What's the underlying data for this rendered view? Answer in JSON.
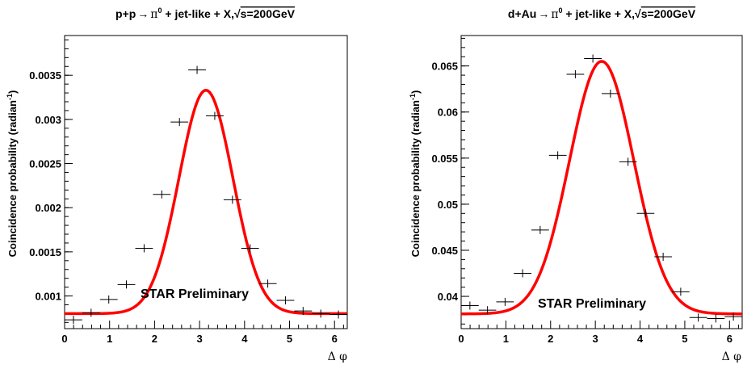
{
  "charts": [
    {
      "id": "pp",
      "title": {
        "pre": "p+p",
        "arrow": "→",
        "pi": "π",
        "sup": "0",
        "post": " + jet-like + X,",
        "sqrt": "√",
        "s": "s=200GeV"
      },
      "ylabel": {
        "main": "Coincidence probability (radian",
        "sup": "-1",
        "close": ")"
      },
      "xlabel": "Δ φ",
      "annotation": "STAR Preliminary"
    },
    {
      "id": "dau",
      "title": {
        "pre": "d+Au",
        "arrow": "→",
        "pi": "π",
        "sup": "0",
        "post": " + jet-like + X,",
        "sqrt": "√",
        "s": "s=200GeV"
      },
      "ylabel": {
        "main": "Coincidence probability (radian",
        "sup": "-1",
        "close": ")"
      },
      "xlabel": "Δ φ",
      "annotation": "STAR Preliminary"
    }
  ],
  "chart_data": [
    {
      "type": "scatter",
      "title": "p+p → π0 + jet-like + X, √s=200GeV",
      "xlabel": "Δ φ",
      "ylabel": "Coincidence probability (radian-1)",
      "xlim": [
        0,
        6.2832
      ],
      "ylim": [
        0.00063,
        0.00395
      ],
      "xticks": [
        0,
        1,
        2,
        3,
        4,
        5,
        6
      ],
      "yticks": [
        0.001,
        0.0015,
        0.002,
        0.0025,
        0.003,
        0.0035
      ],
      "ytick_labels": [
        "0.001",
        "0.0015",
        "0.002",
        "0.0025",
        "0.003",
        "0.0035"
      ],
      "xbin_width": 0.3927,
      "points": [
        {
          "x": 0.196,
          "y": 0.00073
        },
        {
          "x": 0.589,
          "y": 0.00081
        },
        {
          "x": 0.982,
          "y": 0.00096
        },
        {
          "x": 1.374,
          "y": 0.00113
        },
        {
          "x": 1.767,
          "y": 0.00154
        },
        {
          "x": 2.16,
          "y": 0.00215
        },
        {
          "x": 2.553,
          "y": 0.00297
        },
        {
          "x": 2.945,
          "y": 0.00356
        },
        {
          "x": 3.338,
          "y": 0.00304
        },
        {
          "x": 3.731,
          "y": 0.00209
        },
        {
          "x": 4.123,
          "y": 0.00154
        },
        {
          "x": 4.516,
          "y": 0.00114
        },
        {
          "x": 4.909,
          "y": 0.00095
        },
        {
          "x": 5.301,
          "y": 0.00083
        },
        {
          "x": 5.694,
          "y": 0.0008
        },
        {
          "x": 6.087,
          "y": 0.00079
        }
      ],
      "fit": {
        "type": "gaussian_plus_constant",
        "baseline": 0.0008,
        "amplitude": 0.00253,
        "mean": 3.14159,
        "sigma": 0.6,
        "color": "#ff0000"
      }
    },
    {
      "type": "scatter",
      "title": "d+Au → π0 + jet-like + X, √s=200GeV",
      "xlabel": "Δ φ",
      "ylabel": "Coincidence probability (radian-1)",
      "xlim": [
        0,
        6.2832
      ],
      "ylim": [
        0.0365,
        0.0683
      ],
      "xticks": [
        0,
        1,
        2,
        3,
        4,
        5,
        6
      ],
      "yticks": [
        0.04,
        0.045,
        0.05,
        0.055,
        0.06,
        0.065
      ],
      "ytick_labels": [
        "0.04",
        "0.045",
        "0.05",
        "0.055",
        "0.06",
        "0.065"
      ],
      "xbin_width": 0.3927,
      "points": [
        {
          "x": 0.196,
          "y": 0.039
        },
        {
          "x": 0.589,
          "y": 0.0385
        },
        {
          "x": 0.982,
          "y": 0.0394
        },
        {
          "x": 1.374,
          "y": 0.0425
        },
        {
          "x": 1.767,
          "y": 0.0472
        },
        {
          "x": 2.16,
          "y": 0.0553
        },
        {
          "x": 2.553,
          "y": 0.0641
        },
        {
          "x": 2.945,
          "y": 0.0658
        },
        {
          "x": 3.338,
          "y": 0.062
        },
        {
          "x": 3.731,
          "y": 0.0546
        },
        {
          "x": 4.123,
          "y": 0.049
        },
        {
          "x": 4.516,
          "y": 0.0443
        },
        {
          "x": 4.909,
          "y": 0.0405
        },
        {
          "x": 5.301,
          "y": 0.0377
        },
        {
          "x": 5.694,
          "y": 0.0376
        },
        {
          "x": 6.087,
          "y": 0.0378
        }
      ],
      "fit": {
        "type": "gaussian_plus_constant",
        "baseline": 0.0381,
        "amplitude": 0.0274,
        "mean": 3.14159,
        "sigma": 0.72,
        "color": "#ff0000"
      }
    }
  ]
}
